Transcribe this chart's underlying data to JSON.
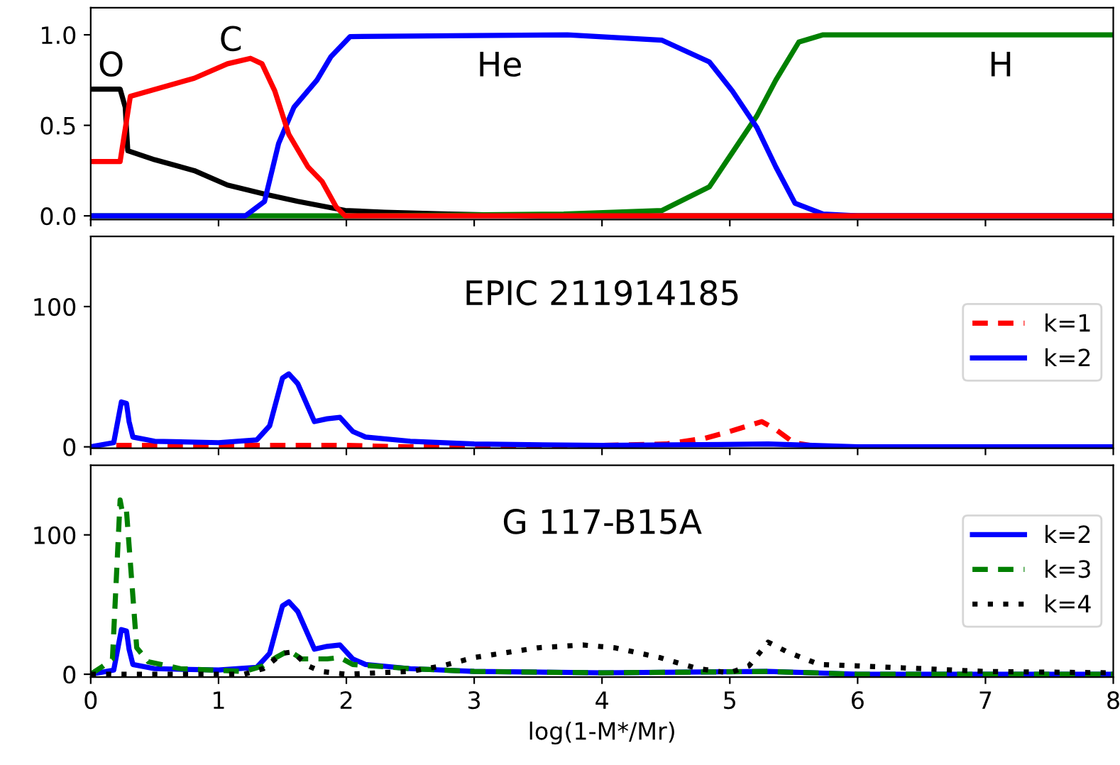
{
  "chart_data": [
    {
      "type": "line",
      "xlim": [
        0,
        8
      ],
      "ylim": [
        -0.02,
        1.15
      ],
      "xticks": [
        0,
        1,
        2,
        3,
        4,
        5,
        6,
        7,
        8
      ],
      "yticks": [
        {
          "value": 0,
          "label": "0.0"
        },
        {
          "value": 0.5,
          "label": "0.5"
        },
        {
          "value": 1,
          "label": "1.0"
        }
      ],
      "tick_labels": "y",
      "grid": false,
      "legend": false,
      "line_style": "solid",
      "annotations": [
        "O",
        "C",
        "He",
        "H"
      ],
      "series": [
        {
          "color": "#000000",
          "x": [
            0,
            0.23,
            0.27,
            0.29,
            0.5,
            0.81,
            1.07,
            1.36,
            1.62,
            1.99,
            2.3,
            2.8,
            3.5,
            8
          ],
          "values": [
            0.7,
            0.7,
            0.6,
            0.36,
            0.31,
            0.25,
            0.17,
            0.12,
            0.08,
            0.03,
            0.02,
            0.01,
            0,
            0
          ]
        },
        {
          "color": "#008000",
          "x": [
            0,
            2,
            3.7,
            4.47,
            4.84,
            5.02,
            5.21,
            5.36,
            5.54,
            5.73,
            8
          ],
          "values": [
            0,
            0,
            0.01,
            0.03,
            0.16,
            0.35,
            0.55,
            0.75,
            0.96,
            1.0,
            1.0
          ]
        },
        {
          "color": "#0000ff",
          "x": [
            0,
            1.21,
            1.36,
            1.47,
            1.59,
            1.77,
            1.88,
            2.03,
            3.73,
            4.47,
            4.84,
            5.02,
            5.21,
            5.36,
            5.51,
            5.73,
            6,
            8
          ],
          "values": [
            0,
            0,
            0.08,
            0.4,
            0.6,
            0.75,
            0.88,
            0.99,
            1.0,
            0.97,
            0.85,
            0.69,
            0.49,
            0.27,
            0.07,
            0.01,
            0,
            0
          ]
        },
        {
          "color": "#ff0000",
          "x": [
            0,
            0.23,
            0.31,
            0.81,
            1.07,
            1.25,
            1.34,
            1.44,
            1.55,
            1.7,
            1.81,
            1.92,
            1.99,
            8
          ],
          "values": [
            0.3,
            0.3,
            0.66,
            0.76,
            0.84,
            0.87,
            0.84,
            0.69,
            0.45,
            0.27,
            0.19,
            0.05,
            0,
            0
          ]
        }
      ]
    },
    {
      "type": "line",
      "title": "EPIC 211914185",
      "xlim": [
        0,
        8
      ],
      "ylim": [
        -1,
        150
      ],
      "xticks": [
        0,
        1,
        2,
        3,
        4,
        5,
        6,
        7,
        8
      ],
      "yticks": [
        0,
        100
      ],
      "tick_labels": "y",
      "grid": false,
      "legend": "right",
      "series": [
        {
          "name": "k=1",
          "color": "#ff0000",
          "line_style": "dashed",
          "x": [
            0.2,
            2,
            2.5,
            4,
            4.5,
            4.8,
            5.0,
            5.25,
            5.35,
            5.5,
            5.7,
            8
          ],
          "values": [
            1,
            1,
            0,
            1,
            2,
            6,
            11,
            18,
            13,
            3,
            0,
            0
          ]
        },
        {
          "name": "k=2",
          "color": "#0000ff",
          "line_style": "solid",
          "x": [
            0,
            0.18,
            0.24,
            0.28,
            0.3,
            0.33,
            0.5,
            1.0,
            1.3,
            1.4,
            1.5,
            1.55,
            1.62,
            1.75,
            1.85,
            1.95,
            2.05,
            2.15,
            2.5,
            3.0,
            4.0,
            5.3,
            6.0,
            8.0
          ],
          "values": [
            0,
            3,
            32,
            31,
            18,
            7,
            4,
            3,
            5,
            15,
            49,
            52,
            45,
            18,
            20,
            21,
            11,
            7,
            4,
            2,
            1,
            2,
            0,
            0
          ]
        }
      ]
    },
    {
      "type": "line",
      "title": "G 117-B15A",
      "xlabel": "log(1-M*/Mr)",
      "xlim": [
        0,
        8
      ],
      "ylim": [
        -2,
        150
      ],
      "xticks": [
        0,
        1,
        2,
        3,
        4,
        5,
        6,
        7,
        8
      ],
      "yticks": [
        0,
        100
      ],
      "grid": false,
      "legend": "right",
      "series": [
        {
          "name": "k=2",
          "color": "#0000ff",
          "line_style": "solid",
          "x": [
            0,
            0.18,
            0.24,
            0.28,
            0.3,
            0.33,
            0.5,
            1.0,
            1.3,
            1.4,
            1.5,
            1.55,
            1.62,
            1.75,
            1.85,
            1.95,
            2.05,
            2.15,
            2.5,
            3.0,
            4.0,
            5.3,
            6.0,
            8.0
          ],
          "values": [
            0,
            3,
            32,
            31,
            18,
            7,
            4,
            3,
            5,
            15,
            49,
            52,
            45,
            18,
            20,
            21,
            11,
            7,
            4,
            2,
            1,
            2,
            0,
            0
          ]
        },
        {
          "name": "k=3",
          "color": "#008000",
          "line_style": "dashed",
          "x": [
            0,
            0.1,
            0.17,
            0.23,
            0.25,
            0.28,
            0.32,
            0.36,
            0.45,
            0.7,
            1.2,
            1.35,
            1.45,
            1.55,
            1.65,
            1.75,
            1.85,
            1.95,
            2.05,
            2.5,
            3.0,
            4.0,
            5.3,
            6.0,
            8.0
          ],
          "values": [
            0,
            6,
            11,
            125,
            115,
            117,
            68,
            19,
            9,
            4,
            2,
            6,
            12,
            17,
            11,
            11,
            11,
            12,
            7,
            4,
            2,
            1,
            2,
            0,
            0
          ]
        },
        {
          "name": "k=4",
          "color": "#000000",
          "line_style": "dotted",
          "x": [
            0,
            1.2,
            1.35,
            1.5,
            1.58,
            1.7,
            1.8,
            2.0,
            2.5,
            2.75,
            3.0,
            3.5,
            3.85,
            4.1,
            4.45,
            4.75,
            5.0,
            5.15,
            5.3,
            5.45,
            5.7,
            6.0,
            6.5,
            7.0,
            8.0
          ],
          "values": [
            0,
            0,
            4,
            15,
            16,
            6,
            2,
            0,
            2,
            6,
            12,
            19,
            21,
            19,
            12,
            4,
            1,
            6,
            23,
            16,
            7,
            6,
            4,
            2,
            1
          ]
        }
      ]
    }
  ]
}
